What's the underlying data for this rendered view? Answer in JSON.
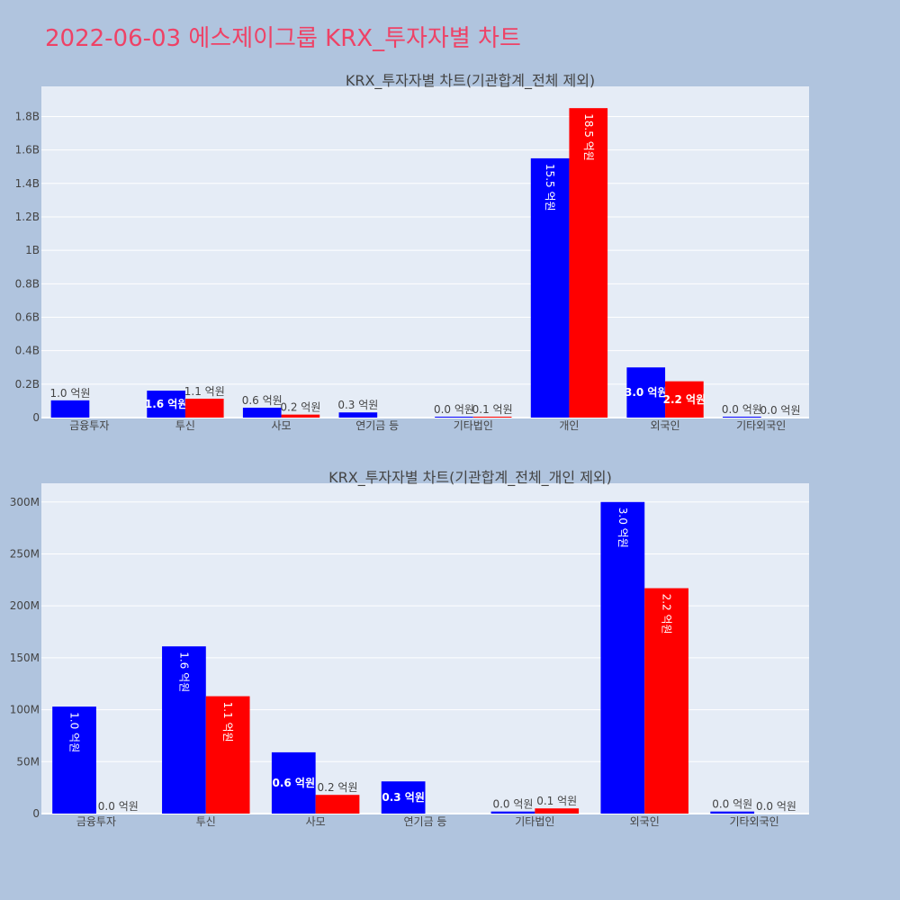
{
  "page": {
    "title": "2022-06-03 에스제이그룹 KRX_투자자별 차트"
  },
  "colors": {
    "background": "#b0c4de",
    "plot_bg": "#e5ecf6",
    "series1": "#0000ff",
    "series2": "#ff0000",
    "title": "#ee4266"
  },
  "chart_data": [
    {
      "type": "bar",
      "title": "KRX_투자자별 차트(기관합계_전체 제외)",
      "categories": [
        "금융투자",
        "투신",
        "사모",
        "연기금 등",
        "기타법인",
        "개인",
        "외국인",
        "기타외국인"
      ],
      "series": [
        {
          "color": "#0000ff",
          "values": [
            103000000,
            161000000,
            59000000,
            31000000,
            2000000,
            1550000000,
            300000000,
            2000000
          ],
          "labels": [
            "1.0 억원",
            "1.6 억원",
            "0.6 억원",
            "0.3 억원",
            "0.0 억원",
            "15.5 억원",
            "3.0 억원",
            "0.0 억원"
          ]
        },
        {
          "color": "#ff0000",
          "values": [
            0,
            113000000,
            18000000,
            0,
            5000000,
            1850000000,
            217000000,
            0
          ],
          "labels": [
            "",
            "1.1 억원",
            "0.2 억원",
            "",
            "0.1 억원",
            "18.5 억원",
            "2.2 억원",
            "0.0 억원"
          ]
        }
      ],
      "ylim": [
        0,
        1980000000
      ],
      "yticks": [
        0,
        200000000,
        400000000,
        600000000,
        800000000,
        1000000000,
        1200000000,
        1400000000,
        1600000000,
        1800000000
      ],
      "yticklabels": [
        "0",
        "0.2B",
        "0.4B",
        "0.6B",
        "0.8B",
        "1B",
        "1.2B",
        "1.4B",
        "1.6B",
        "1.8B"
      ],
      "grid": true,
      "legend": "none"
    },
    {
      "type": "bar",
      "title": "KRX_투자자별 차트(기관합계_전체_개인 제외)",
      "categories": [
        "금융투자",
        "투신",
        "사모",
        "연기금 등",
        "기타법인",
        "외국인",
        "기타외국인"
      ],
      "series": [
        {
          "color": "#0000ff",
          "values": [
            103000000,
            161000000,
            59000000,
            31000000,
            2000000,
            300000000,
            2000000
          ],
          "labels": [
            "1.0 억원",
            "1.6 억원",
            "0.6 억원",
            "0.3 억원",
            "0.0 억원",
            "3.0 억원",
            "0.0 억원"
          ]
        },
        {
          "color": "#ff0000",
          "values": [
            0,
            113000000,
            18000000,
            0,
            5000000,
            217000000,
            0
          ],
          "labels": [
            "0.0 억원",
            "1.1 억원",
            "0.2 억원",
            "",
            "0.1 억원",
            "2.2 억원",
            "0.0 억원"
          ]
        }
      ],
      "ylim": [
        0,
        318000000
      ],
      "yticks": [
        0,
        50000000,
        100000000,
        150000000,
        200000000,
        250000000,
        300000000
      ],
      "yticklabels": [
        "0",
        "50M",
        "100M",
        "150M",
        "200M",
        "250M",
        "300M"
      ],
      "grid": true,
      "legend": "none"
    }
  ]
}
